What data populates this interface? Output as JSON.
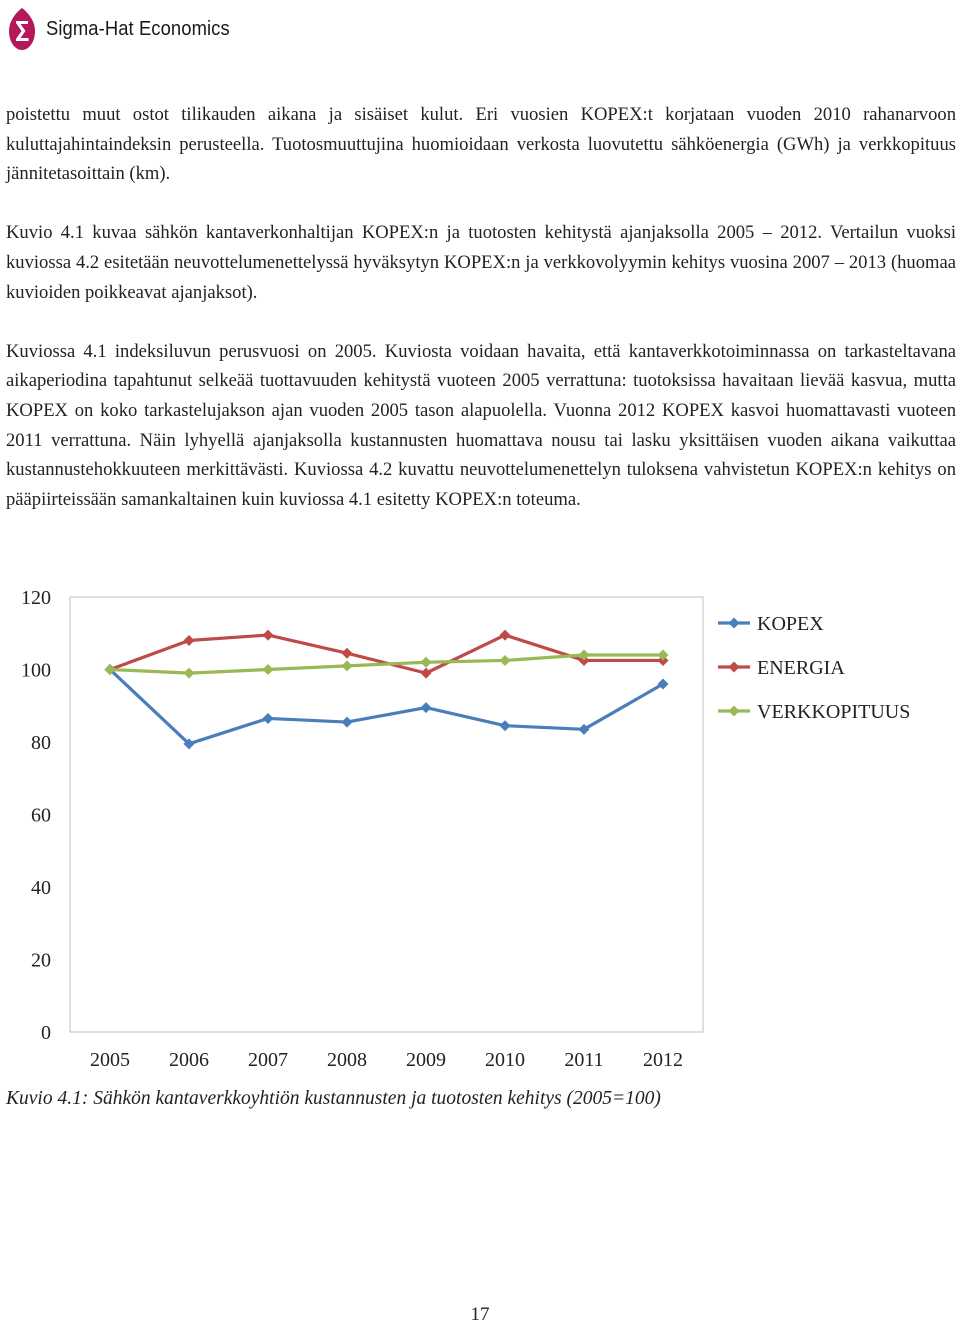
{
  "header": {
    "brand": "Sigma-Hat Economics"
  },
  "paragraphs": [
    "poistettu muut ostot tilikauden aikana ja sisäiset kulut. Eri vuosien KOPEX:t korjataan vuoden 2010 rahanarvoon kuluttajahintaindeksin perusteella. Tuotosmuuttujina huomioidaan verkosta luovutettu sähköenergia (GWh) ja verkkopituus jännitetasoittain (km).",
    "Kuvio 4.1 kuvaa sähkön kantaverkonhaltijan KOPEX:n ja tuotosten kehitystä ajanjaksolla 2005 – 2012. Vertailun vuoksi kuviossa 4.2 esitetään neuvottelumenettelyssä hyväksytyn KOPEX:n ja verkkovolyymin kehitys vuosina 2007 – 2013 (huomaa kuvioiden poikkeavat ajanjaksot).",
    "Kuviossa 4.1 indeksiluvun perusvuosi on 2005. Kuviosta voidaan havaita, että kantaverkkotoiminnassa on tarkasteltavana aikaperiodina tapahtunut selkeää tuottavuuden kehitystä vuoteen 2005 verrattuna: tuotoksissa havaitaan lievää kasvua, mutta KOPEX on koko tarkastelujakson ajan vuoden 2005 tason alapuolella. Vuonna 2012 KOPEX kasvoi huomattavasti vuoteen 2011 verrattuna. Näin lyhyellä ajanjaksolla kustannusten huomattava nousu tai lasku yksittäisen vuoden aikana vaikuttaa kustannustehokkuuteen merkittävästi. Kuviossa 4.2 kuvattu neuvottelumenettelyn tuloksena vahvistetun KOPEX:n kehitys on pääpiirteissään samankaltainen kuin kuviossa 4.1 esitetty KOPEX:n toteuma."
  ],
  "chart_data": {
    "type": "line",
    "x": [
      "2005",
      "2006",
      "2007",
      "2008",
      "2009",
      "2010",
      "2011",
      "2012"
    ],
    "ylim": [
      0,
      120
    ],
    "yticks": [
      "0",
      "20",
      "40",
      "60",
      "80",
      "100",
      "120"
    ],
    "grid": false,
    "legend": "right",
    "series": [
      {
        "name": "KOPEX",
        "color": "#4a7ebb",
        "values": [
          100,
          79.5,
          86.5,
          85.5,
          89.5,
          84.5,
          83.5,
          96
        ]
      },
      {
        "name": "ENERGIA",
        "color": "#be4b48",
        "values": [
          100,
          108,
          109.5,
          104.5,
          99,
          109.5,
          102.5,
          102.5
        ]
      },
      {
        "name": "VERKKOPITUUS",
        "color": "#98b954",
        "values": [
          100,
          99,
          100,
          101,
          102,
          102.5,
          104,
          104
        ]
      }
    ]
  },
  "caption": "Kuvio 4.1: Sähkön kantaverkkoyhtiön kustannusten ja tuotosten kehitys (2005=100)",
  "page_number": "17",
  "colors": {
    "brand_mark": "#b3175e"
  }
}
